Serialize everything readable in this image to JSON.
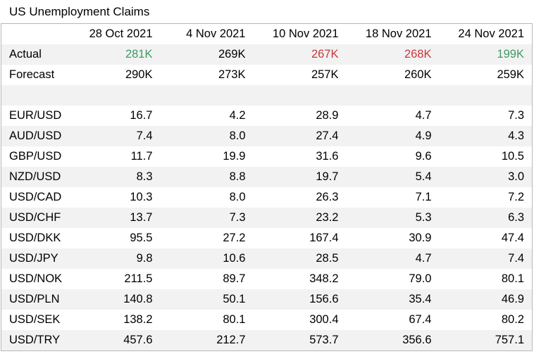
{
  "title": "US Unemployment Claims",
  "colors": {
    "green": "#3e9b63",
    "red": "#c8373d",
    "band": "#f2f2f2"
  },
  "columns": [
    "28 Oct 2021",
    "4 Nov 2021",
    "10 Nov 2021",
    "18 Nov 2021",
    "24 Nov 2021"
  ],
  "actual": {
    "label": "Actual",
    "values": [
      {
        "v": "281K",
        "tone": "green"
      },
      {
        "v": "269K",
        "tone": "black"
      },
      {
        "v": "267K",
        "tone": "red"
      },
      {
        "v": "268K",
        "tone": "red"
      },
      {
        "v": "199K",
        "tone": "green"
      }
    ]
  },
  "forecast": {
    "label": "Forecast",
    "values": [
      "290K",
      "273K",
      "257K",
      "260K",
      "259K"
    ]
  },
  "pairs": [
    {
      "name": "EUR/USD",
      "values": [
        "16.7",
        "4.2",
        "28.9",
        "4.7",
        "7.3"
      ]
    },
    {
      "name": "AUD/USD",
      "values": [
        "7.4",
        "8.0",
        "27.4",
        "4.9",
        "4.3"
      ]
    },
    {
      "name": "GBP/USD",
      "values": [
        "11.7",
        "19.9",
        "31.6",
        "9.6",
        "10.5"
      ]
    },
    {
      "name": "NZD/USD",
      "values": [
        "8.3",
        "8.8",
        "19.7",
        "5.4",
        "3.0"
      ]
    },
    {
      "name": "USD/CAD",
      "values": [
        "10.3",
        "8.0",
        "26.3",
        "7.1",
        "7.2"
      ]
    },
    {
      "name": "USD/CHF",
      "values": [
        "13.7",
        "7.3",
        "23.2",
        "5.3",
        "6.3"
      ]
    },
    {
      "name": "USD/DKK",
      "values": [
        "95.5",
        "27.2",
        "167.4",
        "30.9",
        "47.4"
      ]
    },
    {
      "name": "USD/JPY",
      "values": [
        "9.8",
        "10.6",
        "28.5",
        "4.7",
        "7.4"
      ]
    },
    {
      "name": "USD/NOK",
      "values": [
        "211.5",
        "89.7",
        "348.2",
        "79.0",
        "80.1"
      ]
    },
    {
      "name": "USD/PLN",
      "values": [
        "140.8",
        "50.1",
        "156.6",
        "35.4",
        "46.9"
      ]
    },
    {
      "name": "USD/SEK",
      "values": [
        "138.2",
        "80.1",
        "300.4",
        "67.4",
        "80.2"
      ]
    },
    {
      "name": "USD/TRY",
      "values": [
        "457.6",
        "212.7",
        "573.7",
        "356.6",
        "757.1"
      ]
    }
  ]
}
